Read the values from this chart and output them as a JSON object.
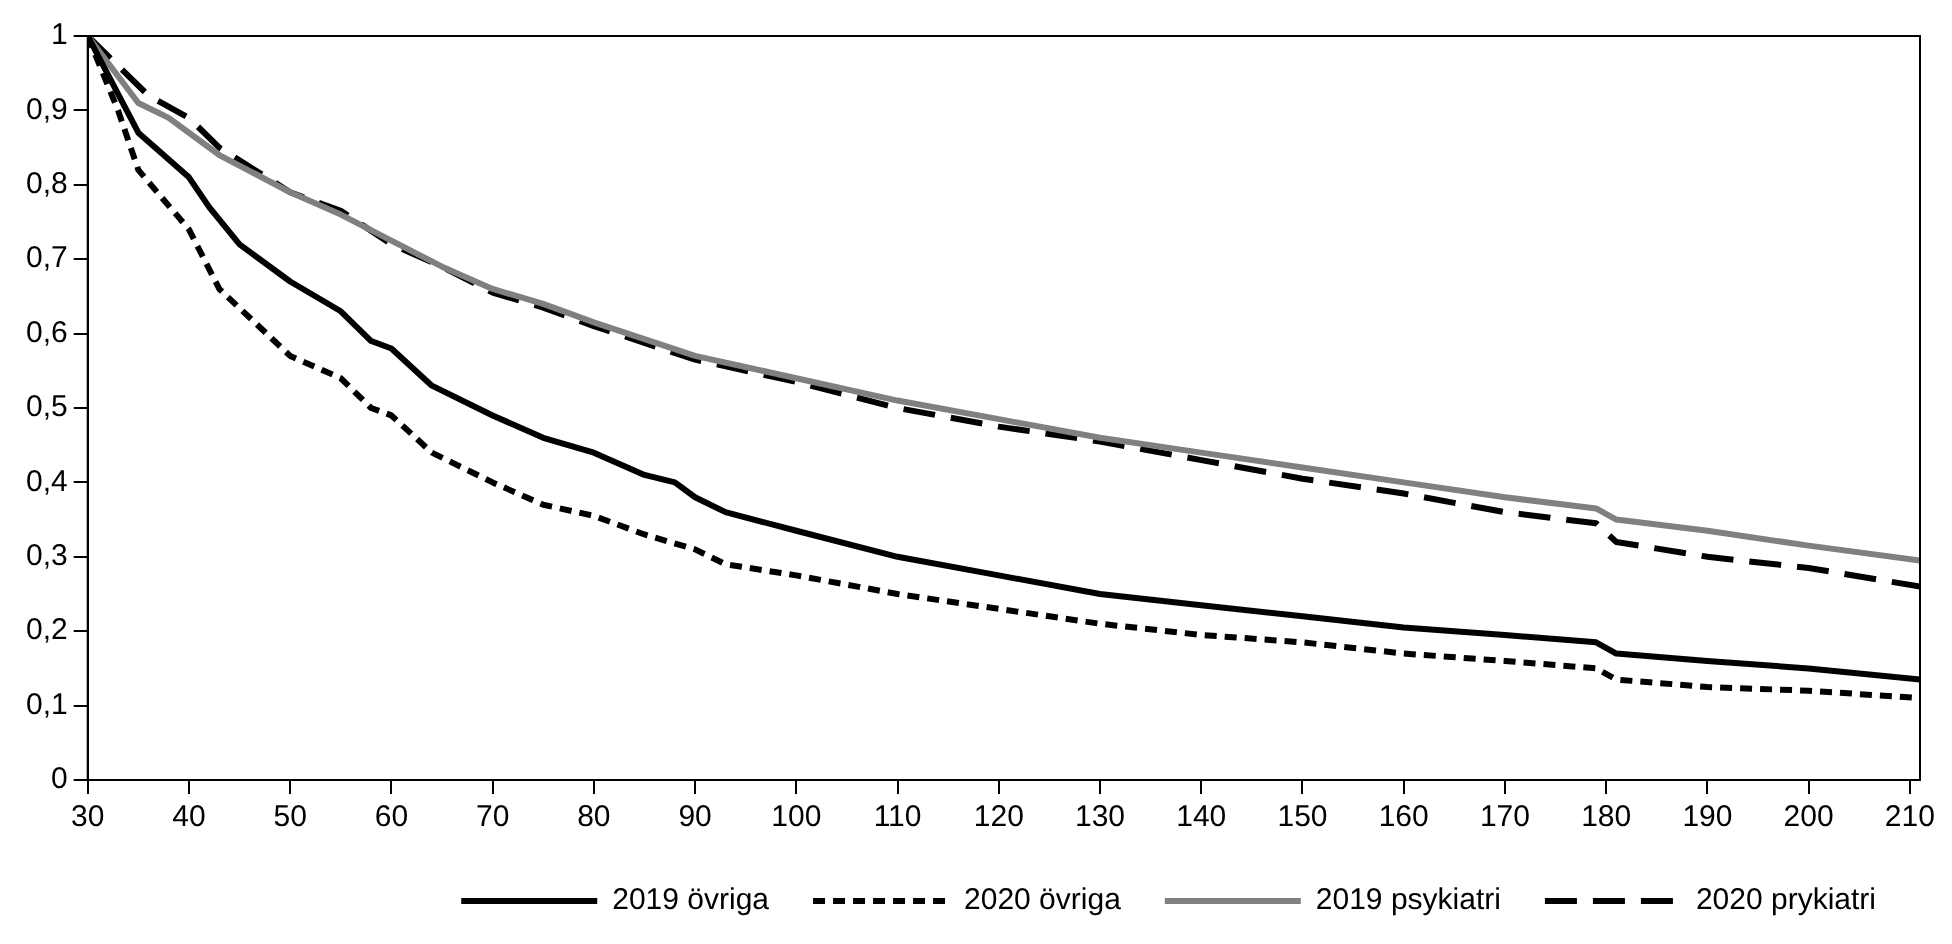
{
  "chart_data": {
    "type": "line",
    "xlim": [
      30,
      211
    ],
    "xticks": [
      30,
      40,
      50,
      60,
      70,
      80,
      90,
      100,
      110,
      120,
      130,
      140,
      150,
      160,
      170,
      180,
      190,
      200,
      210
    ],
    "ylim": [
      0,
      1
    ],
    "yticks": [
      0,
      {
        "value": 0.1,
        "label": "0,1"
      },
      {
        "value": 0.2,
        "label": "0,2"
      },
      {
        "value": 0.3,
        "label": "0,3"
      },
      {
        "value": 0.4,
        "label": "0,4"
      },
      {
        "value": 0.5,
        "label": "0,5"
      },
      {
        "value": 0.6,
        "label": "0,6"
      },
      {
        "value": 0.7,
        "label": "0,7"
      },
      {
        "value": 0.8,
        "label": "0,8"
      },
      {
        "value": 0.9,
        "label": "0,9"
      },
      1
    ],
    "grid": false,
    "legend": "bottom",
    "marker": "none",
    "series": [
      {
        "name": "2019 övriga",
        "color": "#000000",
        "line_style": "solid",
        "x": [
          30,
          35,
          40,
          42,
          45,
          50,
          55,
          58,
          60,
          64,
          70,
          75,
          80,
          85,
          88,
          90,
          93,
          100,
          110,
          120,
          130,
          140,
          150,
          160,
          170,
          179,
          181,
          190,
          200,
          211
        ],
        "values": [
          1,
          0.87,
          0.81,
          0.77,
          0.72,
          0.67,
          0.63,
          0.59,
          0.58,
          0.53,
          0.49,
          0.46,
          0.44,
          0.41,
          0.4,
          0.38,
          0.36,
          0.335,
          0.3,
          0.275,
          0.25,
          0.235,
          0.22,
          0.205,
          0.195,
          0.185,
          0.17,
          0.16,
          0.15,
          0.135
        ]
      },
      {
        "name": "2020 övriga",
        "color": "#000000",
        "line_style": "dotted",
        "x": [
          30,
          33,
          35,
          40,
          43,
          50,
          55,
          58,
          60,
          64,
          70,
          75,
          80,
          85,
          90,
          93,
          100,
          110,
          120,
          130,
          140,
          150,
          160,
          170,
          179,
          181,
          190,
          200,
          211
        ],
        "values": [
          1,
          0.9,
          0.82,
          0.74,
          0.66,
          0.57,
          0.54,
          0.5,
          0.49,
          0.44,
          0.4,
          0.37,
          0.355,
          0.33,
          0.31,
          0.29,
          0.275,
          0.25,
          0.23,
          0.21,
          0.195,
          0.185,
          0.17,
          0.16,
          0.15,
          0.135,
          0.125,
          0.12,
          0.11
        ]
      },
      {
        "name": "2019 psykiatri",
        "color": "#808080",
        "line_style": "solid",
        "x": [
          30,
          35,
          38,
          40,
          43,
          50,
          55,
          60,
          65,
          70,
          75,
          80,
          90,
          100,
          110,
          120,
          130,
          140,
          150,
          160,
          170,
          179,
          181,
          190,
          200,
          211
        ],
        "values": [
          1,
          0.91,
          0.89,
          0.87,
          0.84,
          0.79,
          0.76,
          0.725,
          0.69,
          0.66,
          0.64,
          0.615,
          0.57,
          0.54,
          0.51,
          0.485,
          0.46,
          0.44,
          0.42,
          0.4,
          0.38,
          0.365,
          0.35,
          0.335,
          0.315,
          0.295
        ]
      },
      {
        "name": "2020 prykiatri",
        "color": "#000000",
        "line_style": "dashed",
        "x": [
          30,
          33,
          36,
          40,
          43,
          50,
          55,
          60,
          65,
          70,
          75,
          80,
          90,
          100,
          110,
          120,
          130,
          140,
          150,
          160,
          170,
          179,
          181,
          190,
          200,
          211
        ],
        "values": [
          1,
          0.96,
          0.92,
          0.89,
          0.85,
          0.79,
          0.765,
          0.72,
          0.69,
          0.655,
          0.635,
          0.61,
          0.565,
          0.535,
          0.5,
          0.475,
          0.455,
          0.43,
          0.405,
          0.385,
          0.36,
          0.345,
          0.32,
          0.3,
          0.285,
          0.26
        ]
      }
    ]
  }
}
